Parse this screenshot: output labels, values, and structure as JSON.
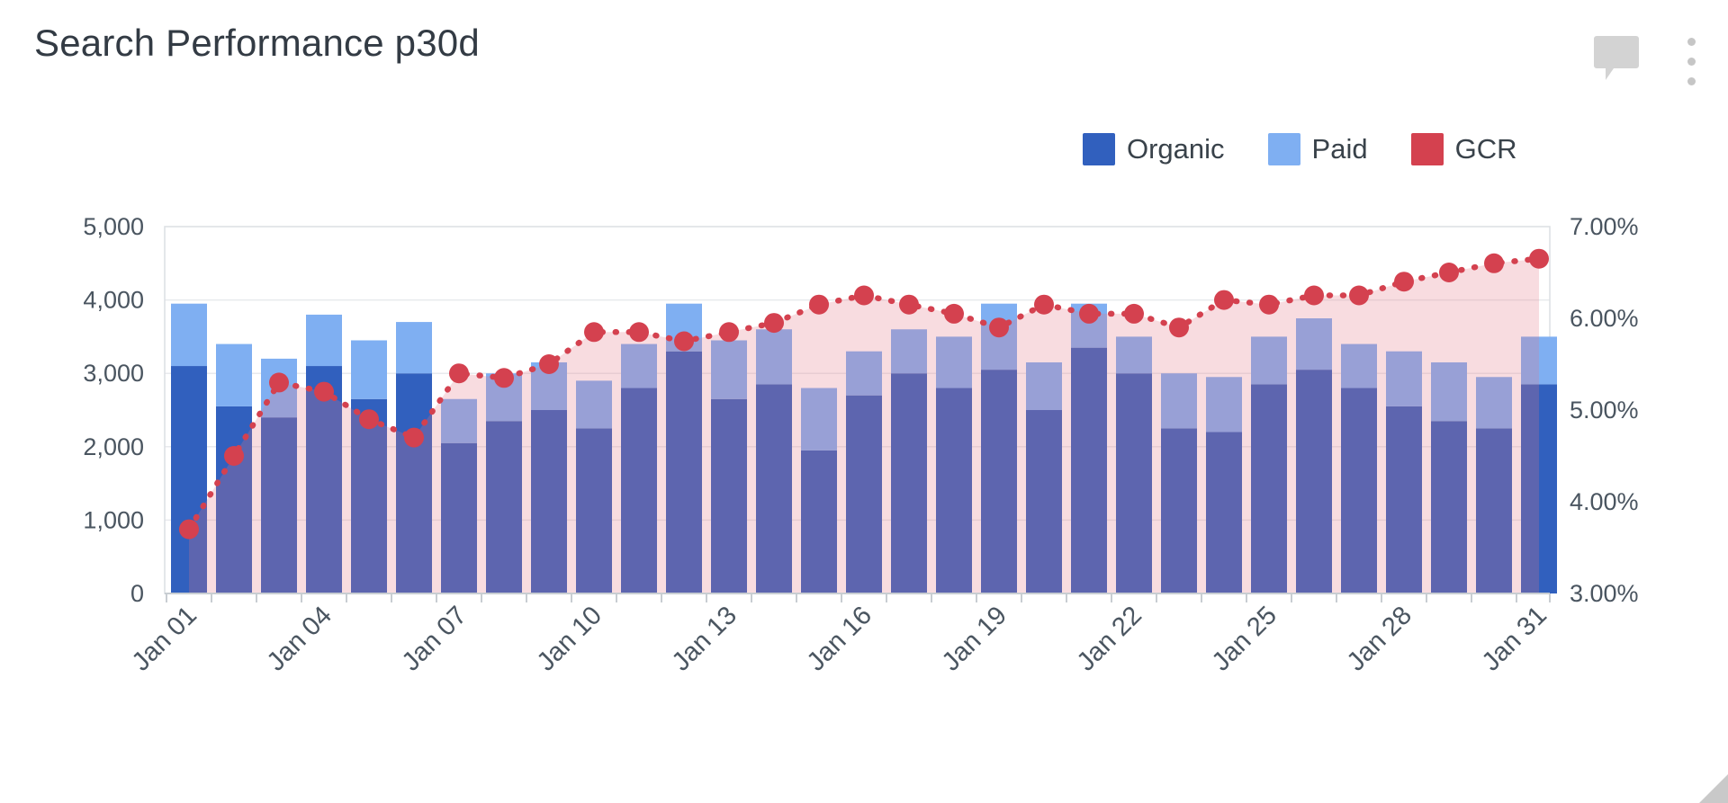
{
  "widget": {
    "title": "Search Performance p30d"
  },
  "header_icons": {
    "comment_icon": "speech-bubble",
    "menu_icon": "vertical-kebab-three-dots",
    "icon_color": "#D3D3D3"
  },
  "legend": [
    {
      "label": "Organic",
      "color": "#3160BE"
    },
    {
      "label": "Paid",
      "color": "#7FAFF2"
    },
    {
      "label": "GCR",
      "color": "#D4414F"
    }
  ],
  "chart_data": {
    "type": "bar",
    "subtype": "stacked-bars-with-dotted-line-and-area",
    "categories": [
      "Jan 01",
      "Jan 02",
      "Jan 03",
      "Jan 04",
      "Jan 05",
      "Jan 06",
      "Jan 07",
      "Jan 08",
      "Jan 09",
      "Jan 10",
      "Jan 11",
      "Jan 12",
      "Jan 13",
      "Jan 14",
      "Jan 15",
      "Jan 16",
      "Jan 17",
      "Jan 18",
      "Jan 19",
      "Jan 20",
      "Jan 21",
      "Jan 22",
      "Jan 23",
      "Jan 24",
      "Jan 25",
      "Jan 26",
      "Jan 27",
      "Jan 28",
      "Jan 29",
      "Jan 30",
      "Jan 31"
    ],
    "series": [
      {
        "name": "Organic",
        "type": "bar",
        "stack": "clicks",
        "color": "#3160BE",
        "axis": "left",
        "values": [
          3100,
          2550,
          2400,
          3100,
          2650,
          3000,
          2050,
          2350,
          2500,
          2250,
          2800,
          3300,
          2650,
          2850,
          1950,
          2700,
          3000,
          2800,
          3050,
          2500,
          3350,
          3000,
          2250,
          2200,
          2850,
          3050,
          2800,
          2550,
          2350,
          2250,
          2850
        ]
      },
      {
        "name": "Paid",
        "type": "bar",
        "stack": "clicks",
        "color": "#7FAFF2",
        "axis": "left",
        "values": [
          850,
          850,
          800,
          700,
          800,
          700,
          600,
          650,
          650,
          650,
          600,
          650,
          800,
          750,
          850,
          600,
          600,
          700,
          900,
          650,
          600,
          500,
          750,
          750,
          650,
          700,
          600,
          750,
          800,
          700,
          650
        ]
      },
      {
        "name": "GCR",
        "type": "line",
        "line_style": "dotted",
        "markers": "circle",
        "color": "#D4414F",
        "area_fill": "#E37383",
        "area_opacity": 0.25,
        "axis": "right",
        "values": [
          3.7,
          4.5,
          5.3,
          5.2,
          4.9,
          4.7,
          5.4,
          5.35,
          5.5,
          5.85,
          5.85,
          5.75,
          5.85,
          5.95,
          6.15,
          6.25,
          6.15,
          6.05,
          5.9,
          6.15,
          6.05,
          6.05,
          5.9,
          6.2,
          6.15,
          6.25,
          6.25,
          6.4,
          6.5,
          6.6,
          6.65
        ]
      }
    ],
    "left_axis": {
      "min": 0,
      "max": 5000,
      "tick_values": [
        0,
        1000,
        2000,
        3000,
        4000,
        5000
      ],
      "tick_labels": [
        "0",
        "1,000",
        "2,000",
        "3,000",
        "4,000",
        "5,000"
      ]
    },
    "right_axis": {
      "min": 3,
      "max": 7,
      "tick_values": [
        3,
        4,
        5,
        6,
        7
      ],
      "tick_labels": [
        "3.00%",
        "4.00%",
        "5.00%",
        "6.00%",
        "7.00%"
      ]
    },
    "x_axis": {
      "shown_label_indices": [
        0,
        3,
        6,
        9,
        12,
        15,
        18,
        21,
        24,
        27,
        30
      ],
      "label_rotation_deg": -45
    },
    "grid": "horizontal",
    "legend_position": "top-right",
    "styles": {
      "grid_color": "#E8EAED",
      "border_color": "#DCDFE3",
      "axis_line_color": "#C8CDD2",
      "tick_label_color": "#4A5560"
    }
  }
}
